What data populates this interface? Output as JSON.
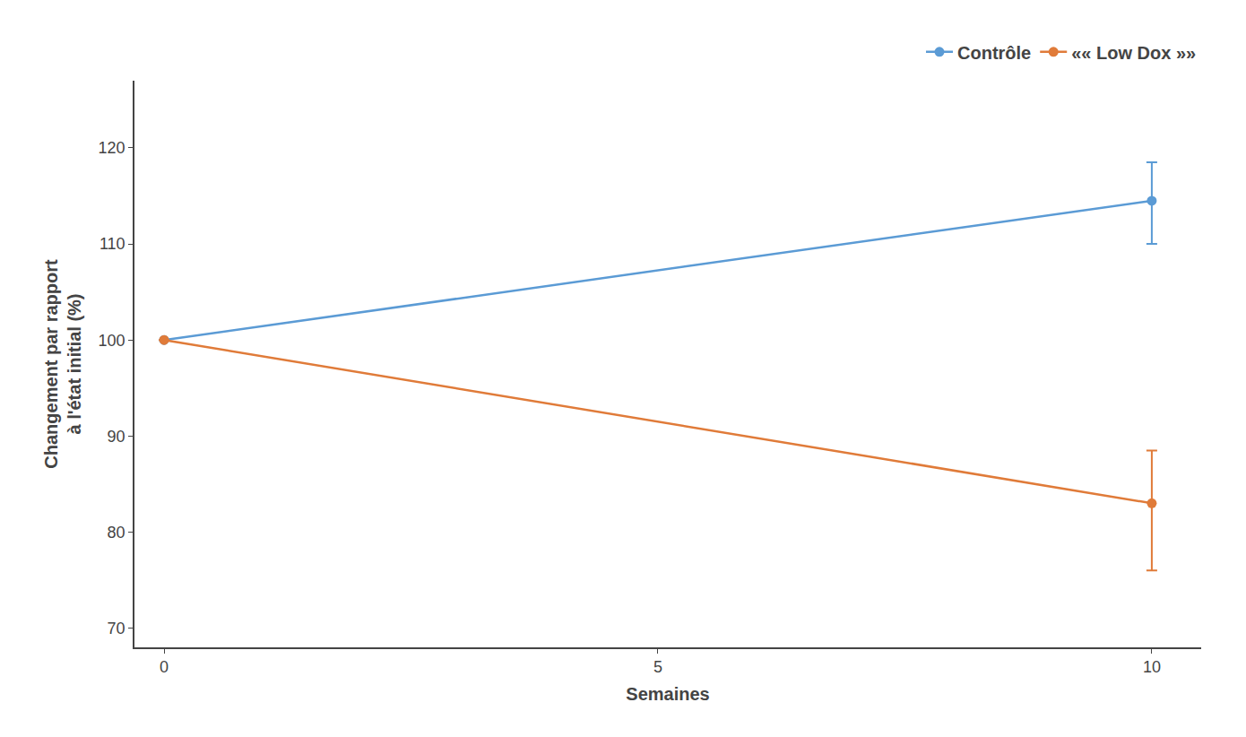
{
  "chart_data": {
    "type": "line",
    "x": [
      0,
      10
    ],
    "series": [
      {
        "name": "Contrôle",
        "color": "#5B9BD5",
        "marker": "circle",
        "values": [
          100,
          114.5
        ],
        "yerr_low": [
          0,
          4.5
        ],
        "yerr_high": [
          0,
          4.0
        ]
      },
      {
        "name": "«« Low Dox »»",
        "color": "#E07B39",
        "marker": "circle",
        "values": [
          100,
          83.0
        ],
        "yerr_low": [
          0,
          7.0
        ],
        "yerr_high": [
          0,
          5.5
        ]
      }
    ],
    "xlabel": "Semaines",
    "ylabel": "Changement par rapport\nà l'état initial (%)",
    "xlim": [
      -0.3,
      10.5
    ],
    "ylim": [
      68,
      127
    ],
    "xticks": [
      0,
      5,
      10
    ],
    "yticks": [
      70,
      80,
      90,
      100,
      110,
      120
    ],
    "grid": false,
    "legend": "upper right"
  }
}
